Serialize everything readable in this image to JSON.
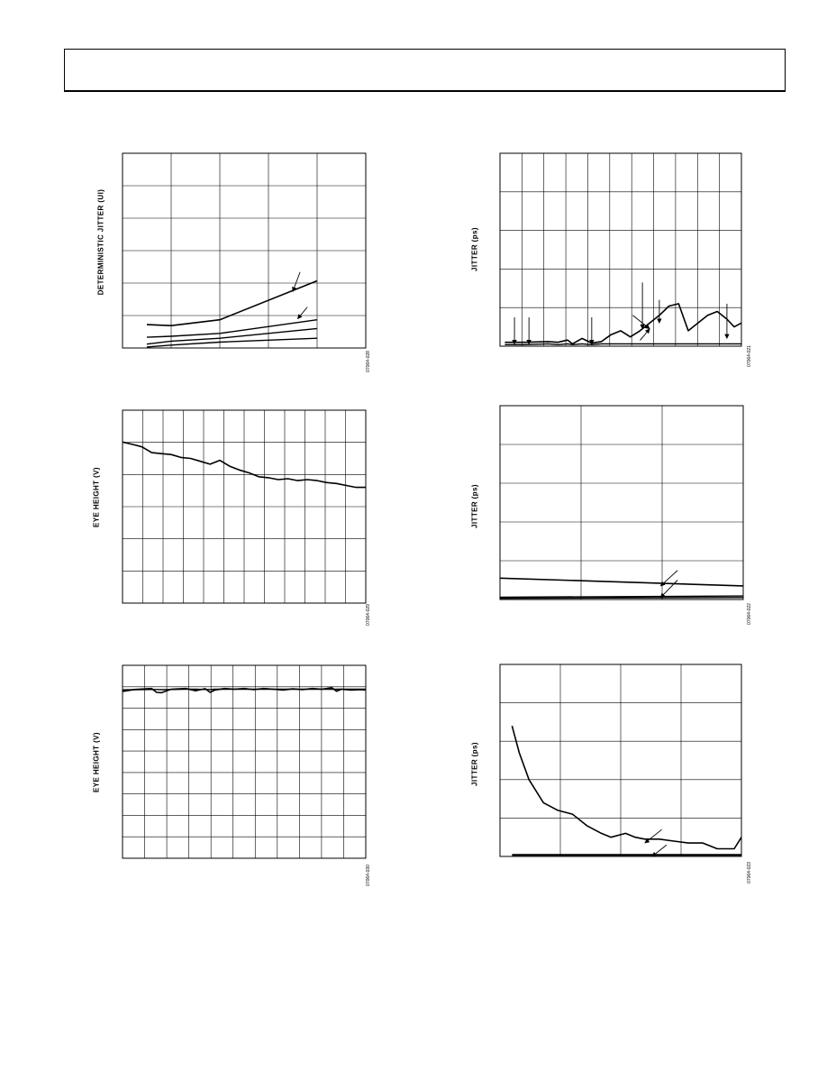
{
  "header": {
    "text": ""
  },
  "panels": [
    {
      "id": "p1",
      "ylabel": "DETERMINISTIC JITTER (UI)",
      "fig_id": "07064-028",
      "grid": {
        "vlines": 5,
        "hlines": 6
      },
      "arrows": [
        {
          "from": [
            0.73,
            0.61
          ],
          "to": [
            0.7,
            0.71
          ]
        },
        {
          "from": [
            0.76,
            0.79
          ],
          "to": [
            0.72,
            0.85
          ]
        }
      ]
    },
    {
      "id": "p2",
      "ylabel": "JITTER (ps)",
      "fig_id": "07064-021",
      "grid": {
        "vlines": 11,
        "hlines": 5
      },
      "arrows": [
        {
          "from": [
            0.06,
            0.85
          ],
          "to": [
            0.06,
            0.99
          ]
        },
        {
          "from": [
            0.12,
            0.85
          ],
          "to": [
            0.12,
            0.99
          ]
        },
        {
          "from": [
            0.38,
            0.85
          ],
          "to": [
            0.38,
            0.99
          ]
        },
        {
          "from": [
            0.59,
            0.67
          ],
          "to": [
            0.59,
            0.91
          ]
        },
        {
          "from": [
            0.66,
            0.76
          ],
          "to": [
            0.66,
            0.88
          ]
        },
        {
          "from": [
            0.94,
            0.78
          ],
          "to": [
            0.94,
            0.96
          ]
        },
        {
          "from": [
            0.55,
            0.84
          ],
          "to": [
            0.62,
            0.91
          ]
        },
        {
          "from": [
            0.58,
            0.97
          ],
          "to": [
            0.62,
            0.91
          ]
        }
      ]
    },
    {
      "id": "p3",
      "ylabel": "EYE HEIGHT (V)",
      "fig_id": "07064-029",
      "grid": {
        "vlines": 12,
        "hlines": 6
      },
      "arrows": []
    },
    {
      "id": "p4",
      "ylabel": "JITTER (ps)",
      "fig_id": "07064-022",
      "grid": {
        "vlines": 3,
        "hlines": 5
      },
      "arrows": [
        {
          "from": [
            0.73,
            0.85
          ],
          "to": [
            0.66,
            0.93
          ]
        },
        {
          "from": [
            0.73,
            0.9
          ],
          "to": [
            0.66,
            0.99
          ]
        }
      ]
    },
    {
      "id": "p5",
      "ylabel": "EYE HEIGHT (V)",
      "fig_id": "07064-030",
      "grid": {
        "vlines": 11,
        "hlines": 9
      },
      "arrows": []
    },
    {
      "id": "p6",
      "ylabel": "JITTER (ps)",
      "fig_id": "07064-023",
      "grid": {
        "vlines": 4,
        "hlines": 5
      },
      "arrows": [
        {
          "from": [
            0.67,
            0.86
          ],
          "to": [
            0.6,
            0.93
          ]
        },
        {
          "from": [
            0.69,
            0.94
          ],
          "to": [
            0.63,
            1.0
          ]
        }
      ]
    }
  ],
  "chart_data": [
    {
      "type": "line",
      "ylabel": "DETERMINISTIC JITTER (UI)",
      "x": [
        0.1,
        0.2,
        0.4,
        0.8
      ],
      "series": [
        {
          "values": [
            0.12,
            0.115,
            0.145,
            0.345
          ]
        },
        {
          "values": [
            0.055,
            0.06,
            0.075,
            0.145
          ]
        },
        {
          "values": [
            0.02,
            0.035,
            0.05,
            0.1
          ]
        },
        {
          "values": [
            0.005,
            0.015,
            0.03,
            0.05
          ]
        }
      ],
      "xlim": [
        0,
        1.0
      ],
      "ylim": [
        0,
        1.0
      ],
      "grid": true
    },
    {
      "type": "line",
      "ylabel": "JITTER (ps)",
      "x": [
        0.02,
        0.1,
        0.2,
        0.24,
        0.28,
        0.3,
        0.34,
        0.38,
        0.42,
        0.46,
        0.5,
        0.54,
        0.58,
        0.62,
        0.66,
        0.7,
        0.74,
        0.78,
        0.82,
        0.86,
        0.9,
        0.94,
        0.97,
        1.0
      ],
      "series": [
        {
          "values": [
            0.5,
            0.5,
            0.6,
            0.5,
            0.8,
            0.3,
            1.0,
            0.4,
            0.6,
            1.5,
            2.0,
            1.2,
            2.0,
            3.0,
            4.0,
            5.2,
            5.5,
            2.0,
            3.0,
            4.0,
            4.5,
            3.5,
            2.5,
            3.0
          ]
        },
        {
          "values": [
            0.2,
            0.2,
            0.3,
            0.2,
            0.3,
            0.2,
            0.3,
            0.2,
            0.3,
            0.3,
            0.3,
            0.3,
            0.3,
            0.3,
            0.3,
            0.3,
            0.3,
            0.3,
            0.3,
            0.3,
            0.3,
            0.3,
            0.3,
            0.3
          ]
        }
      ],
      "xlim": [
        0,
        1.0
      ],
      "ylim": [
        0,
        25
      ],
      "grid": true
    },
    {
      "type": "line",
      "ylabel": "EYE HEIGHT (V)",
      "x": [
        0.0,
        0.05,
        0.08,
        0.12,
        0.16,
        0.2,
        0.24,
        0.28,
        0.32,
        0.36,
        0.4,
        0.44,
        0.48,
        0.52,
        0.56,
        0.6,
        0.64,
        0.68,
        0.72,
        0.76,
        0.8,
        0.84,
        0.88,
        0.92,
        0.96,
        1.0
      ],
      "series": [
        {
          "values": [
            0.835,
            0.82,
            0.81,
            0.78,
            0.775,
            0.77,
            0.755,
            0.75,
            0.735,
            0.72,
            0.74,
            0.71,
            0.69,
            0.675,
            0.655,
            0.65,
            0.64,
            0.645,
            0.635,
            0.64,
            0.635,
            0.625,
            0.62,
            0.61,
            0.6,
            0.6
          ]
        }
      ],
      "xlim": [
        0,
        1.0
      ],
      "ylim": [
        0,
        1.0
      ],
      "grid": true
    },
    {
      "type": "line",
      "ylabel": "JITTER (ps)",
      "x": [
        0.0,
        1.0
      ],
      "series": [
        {
          "values": [
            5.5,
            3.5
          ]
        },
        {
          "values": [
            0.6,
            0.9
          ]
        },
        {
          "values": [
            0.3,
            0.5
          ]
        }
      ],
      "xlim": [
        0,
        1.0
      ],
      "ylim": [
        0,
        50
      ],
      "grid": true
    },
    {
      "type": "line",
      "ylabel": "EYE HEIGHT (V)",
      "x": [
        0.0,
        0.05,
        0.12,
        0.14,
        0.16,
        0.2,
        0.26,
        0.3,
        0.34,
        0.36,
        0.38,
        0.42,
        0.46,
        0.5,
        0.54,
        0.58,
        0.62,
        0.66,
        0.7,
        0.74,
        0.78,
        0.82,
        0.86,
        0.88,
        0.9,
        0.94,
        0.98,
        1.0
      ],
      "series": [
        {
          "values": [
            0.865,
            0.875,
            0.88,
            0.86,
            0.858,
            0.876,
            0.88,
            0.868,
            0.879,
            0.86,
            0.872,
            0.88,
            0.876,
            0.88,
            0.874,
            0.88,
            0.876,
            0.872,
            0.878,
            0.874,
            0.88,
            0.876,
            0.884,
            0.866,
            0.876,
            0.872,
            0.874,
            0.872
          ]
        },
        {
          "values": [
            0.873,
            0.874,
            0.875,
            0.875,
            0.874,
            0.875,
            0.876,
            0.876,
            0.875,
            0.875,
            0.876,
            0.876,
            0.876,
            0.876,
            0.876,
            0.876,
            0.876,
            0.876,
            0.876,
            0.876,
            0.876,
            0.876,
            0.876,
            0.876,
            0.876,
            0.876,
            0.876,
            0.876
          ]
        }
      ],
      "xlim": [
        0,
        1.0
      ],
      "ylim": [
        0,
        1.0
      ],
      "grid": true
    },
    {
      "type": "line",
      "ylabel": "JITTER (ps)",
      "x": [
        0.05,
        0.08,
        0.12,
        0.18,
        0.24,
        0.3,
        0.36,
        0.42,
        0.46,
        0.52,
        0.56,
        0.6,
        0.66,
        0.72,
        0.78,
        0.84,
        0.9,
        0.94,
        0.97,
        1.0
      ],
      "series": [
        {
          "values": [
            34.0,
            27.0,
            20.0,
            14.0,
            12.0,
            11.0,
            8.0,
            6.0,
            5.0,
            6.0,
            5.0,
            4.5,
            4.5,
            4.0,
            3.5,
            3.5,
            2.0,
            2.0,
            2.0,
            5.0
          ]
        },
        {
          "values": [
            0.5,
            0.5,
            0.5,
            0.5,
            0.5,
            0.5,
            0.5,
            0.5,
            0.5,
            0.5,
            0.5,
            0.5,
            0.5,
            0.5,
            0.5,
            0.5,
            0.5,
            0.5,
            0.5,
            0.5
          ]
        },
        {
          "values": [
            0.3,
            0.3,
            0.3,
            0.3,
            0.3,
            0.3,
            0.3,
            0.3,
            0.3,
            0.3,
            0.3,
            0.3,
            0.3,
            0.3,
            0.3,
            0.3,
            0.3,
            0.3,
            0.3,
            0.3
          ]
        }
      ],
      "xlim": [
        0,
        1.0
      ],
      "ylim": [
        0,
        50
      ],
      "grid": true
    }
  ]
}
